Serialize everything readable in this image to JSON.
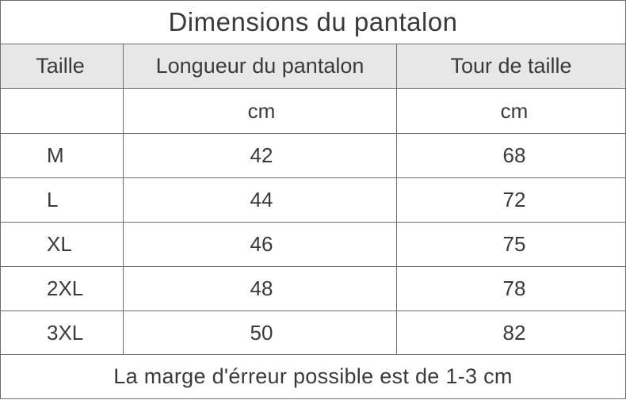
{
  "title": "Dimensions du pantalon",
  "headers": {
    "size": "Taille",
    "length": "Longueur du pantalon",
    "waist": "Tour de taille"
  },
  "units": {
    "size": "",
    "length": "cm",
    "waist": "cm"
  },
  "rows": [
    {
      "size": "M",
      "length": "42",
      "waist": "68"
    },
    {
      "size": "L",
      "length": "44",
      "waist": "72"
    },
    {
      "size": "XL",
      "length": "46",
      "waist": "75"
    },
    {
      "size": "2XL",
      "length": "48",
      "waist": "78"
    },
    {
      "size": "3XL",
      "length": "50",
      "waist": "82"
    }
  ],
  "footer": "La marge d'érreur possible est de 1-3 cm"
}
